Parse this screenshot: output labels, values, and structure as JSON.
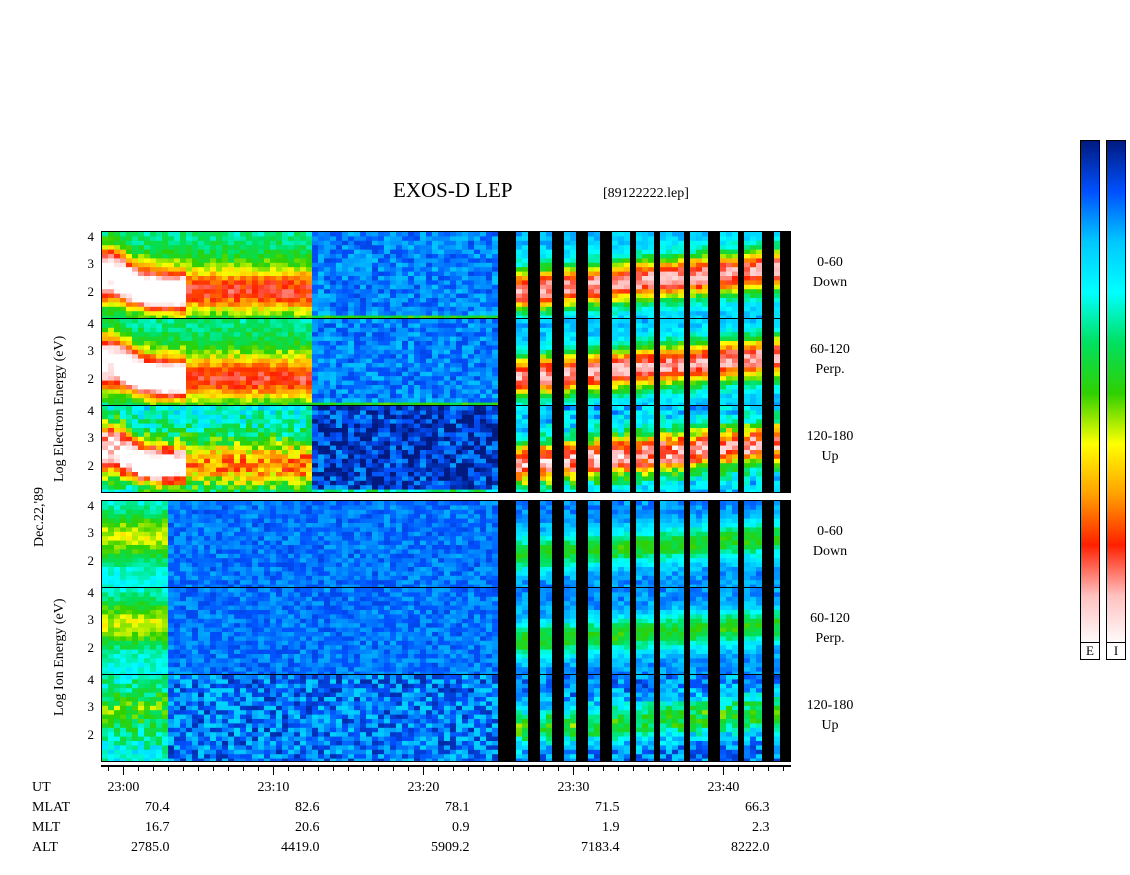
{
  "title": "EXOS-D LEP",
  "file_label": "[89122222.lep]",
  "date_label": "Dec.22,'89",
  "y_axis": {
    "electron_label": "Log Electron Energy (eV)",
    "ion_label": "Log Ion Energy (eV)",
    "ticks": [
      "4",
      "3",
      "2"
    ]
  },
  "colorbar": {
    "labels": [
      "E",
      "I"
    ],
    "stops": [
      "#001a80",
      "#0050ff",
      "#00c8ff",
      "#00ffff",
      "#00e060",
      "#30d000",
      "#ffff00",
      "#ffa000",
      "#ff2000",
      "#ffc0c0",
      "#ffffff"
    ]
  },
  "chart_data": {
    "type": "heatmap",
    "title": "EXOS-D LEP",
    "subtitle": "[89122222.lep]",
    "x_axis": {
      "quantity": "UT",
      "ticks": [
        "23:00",
        "23:10",
        "23:20",
        "23:30",
        "23:40"
      ],
      "range_minutes": [
        -1.5,
        44.5
      ]
    },
    "panels": [
      {
        "species": "Electron",
        "pitch_angle": "0-60",
        "direction": "Down",
        "ylim": [
          1,
          4.2
        ]
      },
      {
        "species": "Electron",
        "pitch_angle": "60-120",
        "direction": "Perp.",
        "ylim": [
          1,
          4.2
        ]
      },
      {
        "species": "Electron",
        "pitch_angle": "120-180",
        "direction": "Up",
        "ylim": [
          1,
          4.2
        ]
      },
      {
        "species": "Ion",
        "pitch_angle": "0-60",
        "direction": "Down",
        "ylim": [
          1,
          4.2
        ]
      },
      {
        "species": "Ion",
        "pitch_angle": "60-120",
        "direction": "Perp.",
        "ylim": [
          1,
          4.2
        ]
      },
      {
        "species": "Ion",
        "pitch_angle": "120-180",
        "direction": "Up",
        "ylim": [
          1,
          4.2
        ]
      }
    ],
    "ephemeris": {
      "rows": [
        {
          "name": "UT",
          "values": [
            "23:00",
            "23:10",
            "23:20",
            "23:30",
            "23:40"
          ]
        },
        {
          "name": "MLAT",
          "values": [
            "70.4",
            "82.6",
            "78.1",
            "71.5",
            "66.3"
          ]
        },
        {
          "name": "MLT",
          "values": [
            "16.7",
            "20.6",
            "0.9",
            "1.9",
            "2.3"
          ]
        },
        {
          "name": "ALT",
          "values": [
            "2785.0",
            "4419.0",
            "5909.2",
            "7183.4",
            "8222.0"
          ]
        }
      ]
    }
  }
}
